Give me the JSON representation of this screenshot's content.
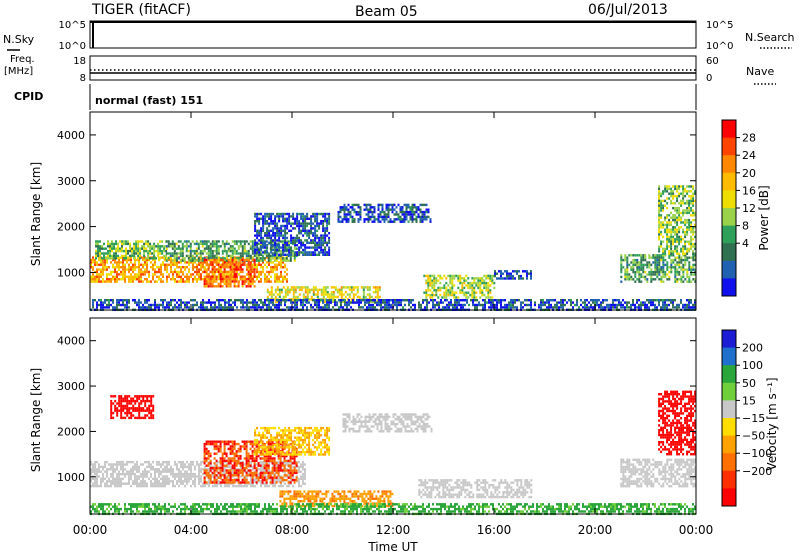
{
  "header": {
    "station": "TIGER (fitACF)",
    "beam": "Beam 05",
    "date": "06/Jul/2013"
  },
  "panel_nsky": {
    "left_label": "N.Sky",
    "right_label": "N.Search",
    "left_ticks": [
      "10^5",
      "10^0"
    ],
    "right_ticks": [
      "10^5",
      "10^0"
    ]
  },
  "panel_freq": {
    "left_label_1": "Freq.",
    "left_label_2": "[MHz]",
    "right_label": "Nave",
    "left_ticks": [
      "18",
      "8"
    ],
    "right_ticks": [
      "60",
      "0"
    ]
  },
  "panel_cpid": {
    "left_label": "CPID",
    "text": "normal (fast) 151"
  },
  "colorbar_power": {
    "label": "Power [dB]",
    "ticks": [
      "28",
      "24",
      "20",
      "16",
      "12",
      "8",
      "4"
    ],
    "colors": [
      "#ff0000",
      "#ff4400",
      "#ff8800",
      "#ffbb00",
      "#eedd00",
      "#9ad24a",
      "#2fa05a",
      "#2f7050",
      "#2060b0",
      "#1010ee"
    ]
  },
  "colorbar_velocity": {
    "label": "Velocity [m s⁻¹]",
    "ticks": [
      "200",
      "100",
      "50",
      "15",
      "−15",
      "−50",
      "−100",
      "−200"
    ],
    "colors": [
      "#1c1cd4",
      "#1f6fcc",
      "#2aa63a",
      "#6ecf3a",
      "#c8c8c8",
      "#ffdd00",
      "#ffa200",
      "#ff7000",
      "#ff3000",
      "#ff0000"
    ]
  },
  "x_ticks": [
    "00:00",
    "04:00",
    "08:00",
    "12:00",
    "16:00",
    "20:00",
    "00:00"
  ],
  "xlabel": "Time UT",
  "chart_data": [
    {
      "type": "heatmap",
      "title": "",
      "ylabel": "Slant Range [km]",
      "xlabel": "",
      "colorbar": "Power [dB]",
      "ylim": [
        180,
        4500
      ],
      "xlim_hours": [
        0,
        24
      ],
      "y_ticks": [
        1000,
        2000,
        3000,
        4000
      ],
      "regions": [
        {
          "t": [
            0.0,
            7.8
          ],
          "r": [
            780,
            1350
          ],
          "value_db": 22
        },
        {
          "t": [
            0.2,
            3.0
          ],
          "r": [
            1300,
            1700
          ],
          "value_db": 14
        },
        {
          "t": [
            3.0,
            8.2
          ],
          "r": [
            1250,
            1700
          ],
          "value_db": 12
        },
        {
          "t": [
            4.5,
            6.5
          ],
          "r": [
            700,
            1300
          ],
          "value_db": 26
        },
        {
          "t": [
            6.5,
            9.5
          ],
          "r": [
            1400,
            2300
          ],
          "value_db": 6
        },
        {
          "t": [
            7.0,
            11.5
          ],
          "r": [
            380,
            700
          ],
          "value_db": 18
        },
        {
          "t": [
            9.8,
            13.5
          ],
          "r": [
            2100,
            2500
          ],
          "value_db": 6
        },
        {
          "t": [
            13.2,
            16.0
          ],
          "r": [
            450,
            950
          ],
          "value_db": 16
        },
        {
          "t": [
            16.0,
            17.5
          ],
          "r": [
            850,
            1050
          ],
          "value_db": 6
        },
        {
          "t": [
            21.0,
            24.0
          ],
          "r": [
            800,
            1400
          ],
          "value_db": 12
        },
        {
          "t": [
            22.5,
            24.0
          ],
          "r": [
            1400,
            2900
          ],
          "value_db": 14
        },
        {
          "t": [
            0.0,
            24.0
          ],
          "r": [
            200,
            420
          ],
          "value_db": 6
        }
      ]
    },
    {
      "type": "heatmap",
      "title": "",
      "ylabel": "Slant Range [km]",
      "xlabel": "Time UT",
      "colorbar": "Velocity [m s⁻¹]",
      "ylim": [
        180,
        4500
      ],
      "xlim_hours": [
        0,
        24
      ],
      "y_ticks": [
        1000,
        2000,
        3000,
        4000
      ],
      "regions": [
        {
          "t": [
            0.0,
            8.5
          ],
          "r": [
            800,
            1350
          ],
          "value_ms": 0
        },
        {
          "t": [
            0.8,
            2.5
          ],
          "r": [
            2300,
            2800
          ],
          "value_ms": -200
        },
        {
          "t": [
            4.5,
            8.2
          ],
          "r": [
            900,
            1800
          ],
          "value_ms": -150
        },
        {
          "t": [
            6.5,
            9.5
          ],
          "r": [
            1500,
            2100
          ],
          "value_ms": -30
        },
        {
          "t": [
            7.5,
            12.0
          ],
          "r": [
            380,
            700
          ],
          "value_ms": -70
        },
        {
          "t": [
            10.0,
            13.5
          ],
          "r": [
            2000,
            2400
          ],
          "value_ms": 0
        },
        {
          "t": [
            13.0,
            17.5
          ],
          "r": [
            550,
            950
          ],
          "value_ms": 0
        },
        {
          "t": [
            21.0,
            24.0
          ],
          "r": [
            800,
            1400
          ],
          "value_ms": 0
        },
        {
          "t": [
            22.5,
            24.0
          ],
          "r": [
            1500,
            2900
          ],
          "value_ms": -200
        },
        {
          "t": [
            0.0,
            24.0
          ],
          "r": [
            200,
            420
          ],
          "value_ms": 40
        }
      ]
    }
  ]
}
